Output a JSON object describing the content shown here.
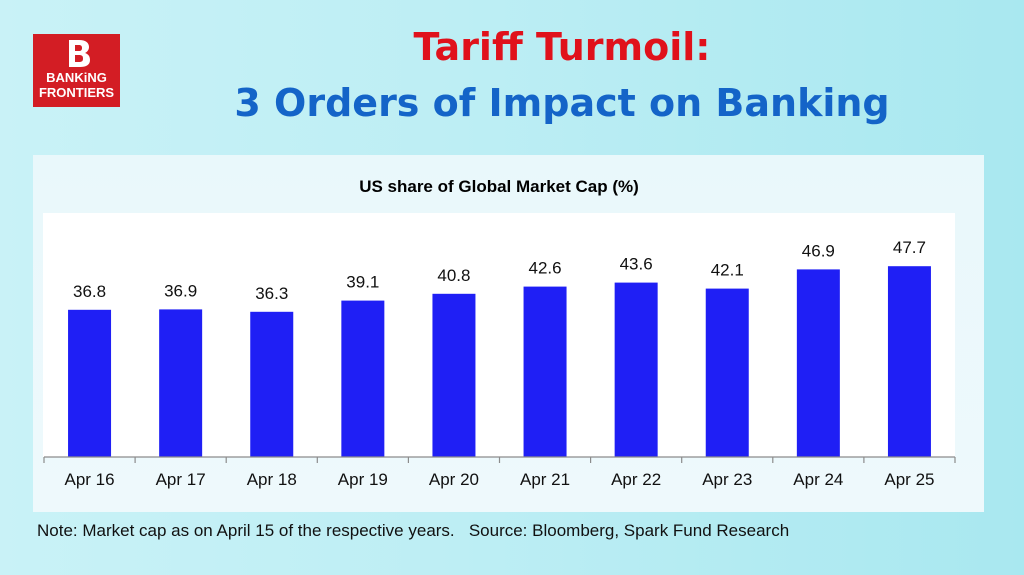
{
  "logo": {
    "line1": "BANKiNG",
    "line2": "FRONTIERS"
  },
  "header": {
    "title": "Tariff Turmoil:",
    "subtitle": "3 Orders of Impact on Banking"
  },
  "colors": {
    "title": "#e0111b",
    "subtitle": "#1464c8",
    "bar": "#1f1ff5",
    "logo_bg": "#d31d24"
  },
  "chart_data": {
    "type": "bar",
    "title": "US share of Global Market Cap (%)",
    "categories": [
      "Apr 16",
      "Apr 17",
      "Apr 18",
      "Apr 19",
      "Apr 20",
      "Apr 21",
      "Apr 22",
      "Apr 23",
      "Apr 24",
      "Apr 25"
    ],
    "values": [
      36.8,
      36.9,
      36.3,
      39.1,
      40.8,
      42.6,
      43.6,
      42.1,
      46.9,
      47.7
    ],
    "xlabel": "",
    "ylabel": "",
    "ylim": [
      0,
      60
    ],
    "grid": false,
    "data_labels": true
  },
  "footer": {
    "note": "Note: Market cap as on April 15 of the respective years.   Source: Bloomberg, Spark Fund Research"
  }
}
